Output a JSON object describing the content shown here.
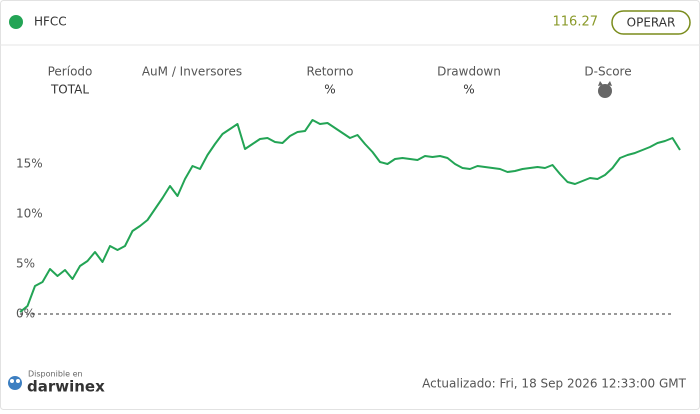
{
  "header": {
    "symbol": "HFCC",
    "price": "116.27",
    "button": "OPERAR"
  },
  "stats": [
    {
      "label": "Período",
      "value": "TOTAL"
    },
    {
      "label": "AuM / Inversores"
    },
    {
      "label": "Retorno",
      "value": "%"
    },
    {
      "label": "Drawdown",
      "value": "%"
    },
    {
      "label": "D-Score"
    }
  ],
  "footer": {
    "available": "Disponible en",
    "brand": "darwinex",
    "updated": "Actualizado: Fri, 18 Sep 2026 12:33:00 GMT"
  },
  "chart_data": {
    "type": "line",
    "color": "#23a455",
    "values": [
      0.2,
      0.8,
      2.8,
      3.2,
      4.5,
      3.8,
      4.4,
      3.5,
      4.8,
      5.3,
      6.2,
      5.2,
      6.8,
      6.4,
      6.8,
      8.3,
      8.8,
      9.4,
      10.5,
      11.6,
      12.8,
      11.8,
      13.5,
      14.8,
      14.5,
      15.9,
      17.0,
      18.0,
      18.5,
      19.0,
      16.5,
      17.0,
      17.5,
      17.6,
      17.2,
      17.1,
      17.8,
      18.2,
      18.3,
      19.4,
      19.0,
      19.1,
      18.6,
      18.1,
      17.6,
      17.9,
      17.0,
      16.2,
      15.2,
      15.0,
      15.5,
      15.6,
      15.5,
      15.4,
      15.8,
      15.7,
      15.8,
      15.6,
      15.0,
      14.6,
      14.5,
      14.8,
      14.7,
      14.6,
      14.5,
      14.2,
      14.3,
      14.5,
      14.6,
      14.7,
      14.6,
      14.9,
      14.0,
      13.2,
      13.0,
      13.3,
      13.6,
      13.5,
      13.9,
      14.6,
      15.6,
      15.9,
      16.1,
      16.4,
      16.7,
      17.1,
      17.3,
      17.6,
      16.4
    ],
    "ylim": [
      0,
      20.5
    ],
    "yticks": [
      {
        "value": 0,
        "label": "0%"
      },
      {
        "value": 5,
        "label": "5%"
      },
      {
        "value": 10,
        "label": "10%"
      },
      {
        "value": 15,
        "label": "15%"
      }
    ]
  }
}
